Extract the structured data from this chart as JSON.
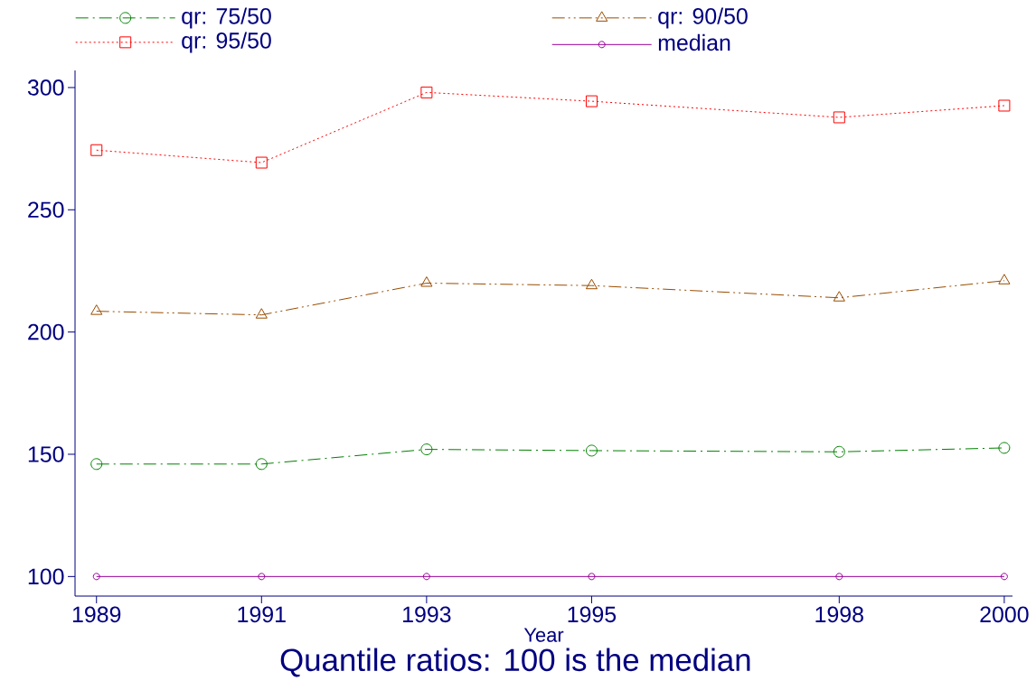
{
  "chart_data": {
    "type": "line",
    "title": "Quantile ratios: 100 is the median",
    "xlabel": "Year",
    "x": [
      1989,
      1991,
      1993,
      1995,
      1998,
      2000
    ],
    "series": [
      {
        "name": "qr: 75/50",
        "color": "#008000",
        "marker": "circle",
        "line_style": "dashdot",
        "values": [
          146,
          146,
          152,
          151.5,
          151,
          152.6
        ]
      },
      {
        "name": "qr: 90/50",
        "color": "#994c00",
        "marker": "triangle",
        "line_style": "dashdotdot",
        "values": [
          208.5,
          207,
          220,
          219,
          214,
          221
        ]
      },
      {
        "name": "qr: 95/50",
        "color": "#ff0000",
        "marker": "square",
        "line_style": "dotted",
        "values": [
          274.4,
          269.3,
          298,
          294.4,
          287.8,
          292.6
        ]
      },
      {
        "name": "median",
        "color": "#990099",
        "marker": "smallcircle",
        "line_style": "solid",
        "values": [
          100,
          100,
          100,
          100,
          100,
          100
        ]
      }
    ],
    "xlim": [
      1988.74,
      2000.1
    ],
    "ylim": [
      92,
      307
    ],
    "xticks": [
      1989,
      1991,
      1993,
      1995,
      1998,
      2000
    ],
    "yticks": [
      100,
      150,
      200,
      250,
      300
    ],
    "legend": "top"
  }
}
